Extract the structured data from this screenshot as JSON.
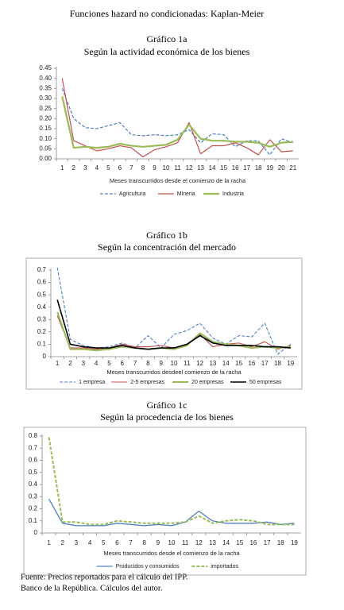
{
  "title": "Funciones hazard no condicionadas: Kaplan-Meier",
  "footer": [
    "Fuente: Precios reportados para el cálculo del IPP.",
    "Banco de la República. Cálculos del autor."
  ],
  "chart_data": [
    {
      "type": "line",
      "title": "Gráfico 1a",
      "subtitle": "Según la actividad económica de los bienes",
      "x_label": "Meses transcurridos desde el comienzo de la racha",
      "categories": [
        "1",
        "2",
        "3",
        "4",
        "5",
        "6",
        "7",
        "8",
        "9",
        "10",
        "11",
        "12",
        "13",
        "14",
        "15",
        "16",
        "17",
        "18",
        "19",
        "20",
        "21"
      ],
      "ylim": [
        0,
        0.45
      ],
      "yticks": [
        {
          "value": 0,
          "label": "0.00"
        },
        {
          "value": 0.05,
          "label": "0.05"
        },
        {
          "value": 0.1,
          "label": "0.10"
        },
        {
          "value": 0.15,
          "label": "0.15"
        },
        {
          "value": 0.2,
          "label": "0.20"
        },
        {
          "value": 0.25,
          "label": "0.25"
        },
        {
          "value": 0.3,
          "label": "0.30"
        },
        {
          "value": 0.35,
          "label": "0.35"
        },
        {
          "value": 0.4,
          "label": "0.40"
        },
        {
          "value": 0.45,
          "label": "0.45"
        }
      ],
      "grid": false,
      "frame": false,
      "series": [
        {
          "name": "Agricultura",
          "color": "#4f81bd",
          "dashed": true,
          "width": 1.2,
          "values": [
            0.35,
            0.2,
            0.155,
            0.15,
            0.165,
            0.18,
            0.12,
            0.115,
            0.12,
            0.115,
            0.12,
            0.145,
            0.08,
            0.125,
            0.12,
            0.06,
            0.09,
            0.09,
            0.02,
            0.1,
            0.08
          ]
        },
        {
          "name": "Mineria",
          "color": "#c0504d",
          "dashed": false,
          "width": 1.2,
          "values": [
            0.4,
            0.09,
            0.065,
            0.04,
            0.05,
            0.065,
            0.055,
            0.01,
            0.045,
            0.06,
            0.08,
            0.18,
            0.025,
            0.065,
            0.065,
            0.08,
            0.055,
            0.02,
            0.095,
            0.035,
            0.04
          ]
        },
        {
          "name": "Industria",
          "color": "#9bbb59",
          "dashed": false,
          "width": 2.2,
          "values": [
            0.31,
            0.055,
            0.06,
            0.055,
            0.06,
            0.075,
            0.065,
            0.06,
            0.065,
            0.07,
            0.095,
            0.17,
            0.1,
            0.09,
            0.09,
            0.085,
            0.085,
            0.08,
            0.06,
            0.08,
            0.085
          ]
        }
      ]
    },
    {
      "type": "line",
      "title": "Gráfico 1b",
      "subtitle": "Según la concentración del mercado",
      "x_label": "Meses transcurridos desdeel comienzo de la racha",
      "categories": [
        "1",
        "2",
        "3",
        "4",
        "5",
        "6",
        "7",
        "8",
        "9",
        "10",
        "11",
        "12",
        "13",
        "14",
        "15",
        "16",
        "17",
        "18",
        "19"
      ],
      "ylim": [
        0,
        0.7
      ],
      "yticks": [
        0,
        0.1,
        0.2,
        0.3,
        0.4,
        0.5,
        0.6,
        0.7
      ],
      "grid": false,
      "frame": true,
      "series": [
        {
          "name": "1 empresa",
          "color": "#4f81bd",
          "dashed": true,
          "width": 1.1,
          "values": [
            0.72,
            0.14,
            0.09,
            0.07,
            0.08,
            0.11,
            0.07,
            0.17,
            0.07,
            0.18,
            0.21,
            0.27,
            0.15,
            0.1,
            0.17,
            0.16,
            0.27,
            0.02,
            0.1
          ]
        },
        {
          "name": "2-5 empresas",
          "color": "#c0504d",
          "dashed": false,
          "width": 1.1,
          "values": [
            0.33,
            0.07,
            0.07,
            0.06,
            0.07,
            0.1,
            0.08,
            0.08,
            0.09,
            0.07,
            0.1,
            0.18,
            0.08,
            0.1,
            0.11,
            0.08,
            0.12,
            0.06,
            0.09
          ]
        },
        {
          "name": "20 empresas",
          "color": "#9bbb59",
          "dashed": false,
          "width": 2,
          "values": [
            0.36,
            0.06,
            0.06,
            0.05,
            0.06,
            0.08,
            0.07,
            0.06,
            0.07,
            0.06,
            0.09,
            0.19,
            0.12,
            0.1,
            0.09,
            0.07,
            0.08,
            0.07,
            0.08
          ]
        },
        {
          "name": "50 empresas",
          "color": "#000000",
          "dashed": false,
          "width": 1.6,
          "values": [
            0.46,
            0.1,
            0.08,
            0.07,
            0.07,
            0.09,
            0.07,
            0.06,
            0.07,
            0.07,
            0.1,
            0.17,
            0.11,
            0.09,
            0.09,
            0.09,
            0.08,
            0.08,
            0.07
          ]
        }
      ]
    },
    {
      "type": "line",
      "title": "Gráfico 1c",
      "subtitle": "Según la procedencia de los bienes",
      "x_label": "Meses transcurridos desde el comienzo de la racha",
      "categories": [
        "1",
        "2",
        "3",
        "4",
        "5",
        "6",
        "7",
        "8",
        "9",
        "10",
        "11",
        "12",
        "13",
        "14",
        "15",
        "16",
        "17",
        "18",
        "19"
      ],
      "ylim": [
        0,
        0.8
      ],
      "yticks": [
        0,
        0.1,
        0.2,
        0.3,
        0.4,
        0.5,
        0.6,
        0.7,
        0.8
      ],
      "grid": false,
      "frame": true,
      "series": [
        {
          "name": "Producidos y consumidos",
          "color": "#4f81bd",
          "dashed": false,
          "width": 1.3,
          "values": [
            0.28,
            0.08,
            0.06,
            0.06,
            0.06,
            0.08,
            0.07,
            0.06,
            0.07,
            0.06,
            0.09,
            0.18,
            0.1,
            0.08,
            0.08,
            0.08,
            0.09,
            0.07,
            0.08
          ]
        },
        {
          "name": "importados",
          "color": "#9bbb59",
          "dashed": true,
          "width": 2,
          "values": [
            0.79,
            0.09,
            0.09,
            0.07,
            0.07,
            0.1,
            0.09,
            0.08,
            0.08,
            0.08,
            0.09,
            0.14,
            0.08,
            0.1,
            0.11,
            0.1,
            0.07,
            0.07,
            0.07
          ]
        }
      ]
    }
  ]
}
